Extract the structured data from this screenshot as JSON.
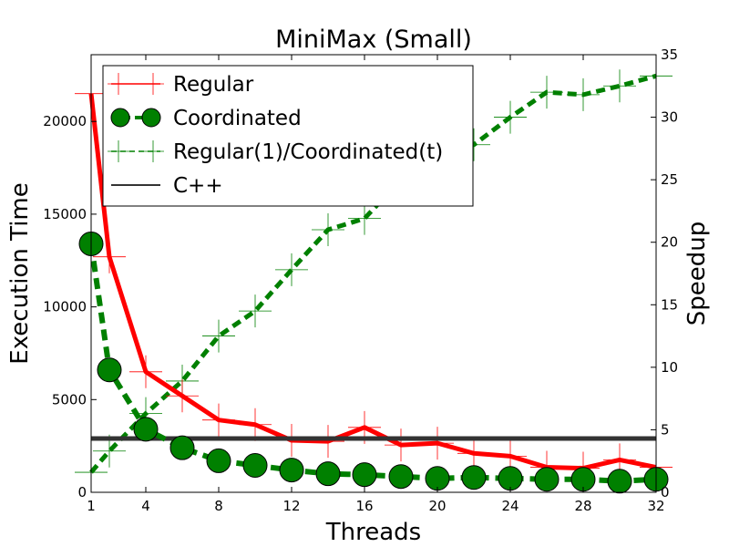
{
  "chart_data": {
    "type": "line",
    "title": "MiniMax (Small)",
    "xlabel": "Threads",
    "ylabel_left": "Execution Time",
    "ylabel_right": "Speedup",
    "xlim": [
      1,
      32
    ],
    "ylim_left": [
      0,
      23600
    ],
    "ylim_right": [
      0,
      35
    ],
    "x_ticks": [
      1,
      4,
      8,
      12,
      16,
      20,
      24,
      28,
      32
    ],
    "y_ticks_left": [
      0,
      5000,
      10000,
      15000,
      20000
    ],
    "y_ticks_right": [
      0,
      5,
      10,
      15,
      20,
      25,
      30,
      35
    ],
    "grid": false,
    "legend_position": "top-left",
    "series": [
      {
        "name": "Regular",
        "axis": "left",
        "color": "#ff0000",
        "style": "solid",
        "marker": "plus",
        "x": [
          1,
          2,
          4,
          6,
          8,
          10,
          12,
          14,
          16,
          18,
          20,
          22,
          24,
          26,
          28,
          30,
          32
        ],
        "y": [
          21500,
          12700,
          6500,
          5200,
          3900,
          3650,
          2800,
          2750,
          3500,
          2550,
          2650,
          2100,
          1950,
          1350,
          1300,
          1750,
          1350
        ]
      },
      {
        "name": "Coordinated",
        "axis": "left",
        "color": "#008000",
        "style": "dashed",
        "marker": "circle",
        "x": [
          1,
          2,
          4,
          6,
          8,
          10,
          12,
          14,
          16,
          18,
          20,
          22,
          24,
          26,
          28,
          30,
          32
        ],
        "y": [
          13400,
          6600,
          3400,
          2400,
          1700,
          1450,
          1200,
          1000,
          950,
          850,
          750,
          800,
          750,
          700,
          700,
          600,
          700
        ]
      },
      {
        "name": "Regular(1)/Coordinated(t)",
        "axis": "right",
        "color": "#008000",
        "style": "dashed",
        "marker": "plus",
        "x": [
          1,
          2,
          4,
          6,
          8,
          10,
          12,
          14,
          16,
          18,
          20,
          22,
          24,
          26,
          28,
          30,
          32
        ],
        "y": [
          1.6,
          3.3,
          6.3,
          8.9,
          12.5,
          14.5,
          17.8,
          21.0,
          21.9,
          25.0,
          27.5,
          27.8,
          30.0,
          32.0,
          31.8,
          32.5,
          33.3
        ]
      },
      {
        "name": "C++",
        "axis": "left",
        "color": "#333333",
        "style": "solid",
        "marker": "none",
        "constant": 2900
      }
    ]
  }
}
